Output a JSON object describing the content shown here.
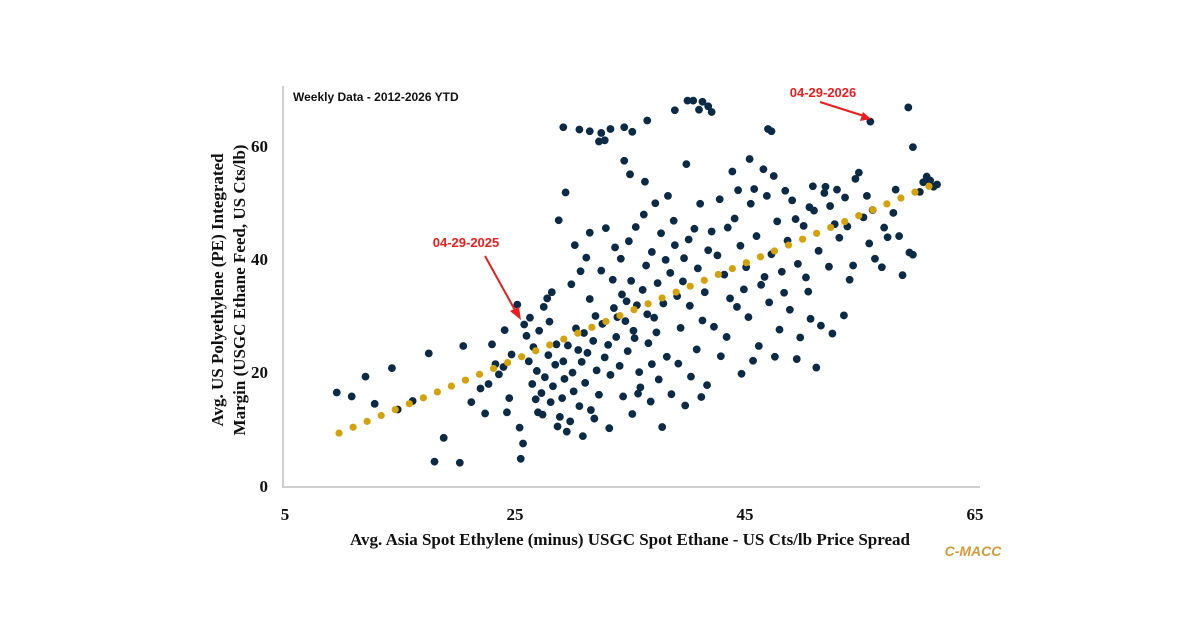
{
  "chart_data": {
    "type": "scatter",
    "subtitle": "Weekly Data - 2012-2026 YTD",
    "xlabel": "Avg. Asia Spot Ethylene (minus) USGC Spot Ethane - US Cts/lb Price Spread",
    "ylabel_lines": [
      "Avg. US Polyethylene (PE) Integrated",
      "Margin (USGC Ethane Feed, US Cts/lb)"
    ],
    "xlim": [
      5,
      65
    ],
    "ylim": [
      0,
      70
    ],
    "x_ticks": [
      "5",
      "25",
      "45",
      "65"
    ],
    "y_ticks": [
      "0",
      "20",
      "40",
      "60"
    ],
    "grid": false,
    "brand": "C-MACC",
    "colors": {
      "points": "#0b2a45",
      "trendline": "#d4a20a",
      "annotation": "#ee1c1c",
      "brand": "#d49a3a",
      "axis": "#cfcfcf"
    },
    "trendline": {
      "slope": 0.849,
      "intercept": 1.1,
      "x_range": [
        9.7,
        61.0
      ],
      "style": "dotted"
    },
    "annotations": [
      {
        "label": "04-29-2025",
        "x": 25.8,
        "y": 28.5
      },
      {
        "label": "04-29-2026",
        "x": 56.8,
        "y": 64.2
      }
    ],
    "points": [
      [
        9.5,
        16.5
      ],
      [
        10.8,
        15.8
      ],
      [
        12,
        19.3
      ],
      [
        12.8,
        14.5
      ],
      [
        14.3,
        20.8
      ],
      [
        14.8,
        13.5
      ],
      [
        16.1,
        15
      ],
      [
        17.5,
        23.4
      ],
      [
        18,
        4.3
      ],
      [
        18.8,
        8.5
      ],
      [
        20.2,
        4.1
      ],
      [
        20.5,
        24.7
      ],
      [
        21.2,
        14.8
      ],
      [
        22,
        17.2
      ],
      [
        22.7,
        18
      ],
      [
        23,
        25
      ],
      [
        23.3,
        21.5
      ],
      [
        24,
        21
      ],
      [
        24.1,
        27.5
      ],
      [
        24.3,
        13
      ],
      [
        24.5,
        15.5
      ],
      [
        25.2,
        32
      ],
      [
        25.4,
        10.3
      ],
      [
        25.5,
        4.8
      ],
      [
        25.7,
        7.5
      ],
      [
        25.8,
        28.5
      ],
      [
        26,
        26.5
      ],
      [
        26.5,
        18
      ],
      [
        27,
        13
      ],
      [
        27.5,
        31.6
      ],
      [
        28.2,
        34.2
      ],
      [
        28.8,
        46.9
      ],
      [
        29.4,
        51.8
      ],
      [
        28.6,
        25
      ],
      [
        28,
        29
      ],
      [
        29.2,
        22
      ],
      [
        30,
        20
      ],
      [
        30.5,
        24
      ],
      [
        31,
        27
      ],
      [
        31.5,
        33
      ],
      [
        32,
        30
      ],
      [
        32.5,
        38
      ],
      [
        30.2,
        42.5
      ],
      [
        31.5,
        44.7
      ],
      [
        26.2,
        22
      ],
      [
        26.6,
        24.5
      ],
      [
        26.9,
        20.3
      ],
      [
        27.3,
        16.4
      ],
      [
        27.6,
        19.2
      ],
      [
        27.9,
        23.1
      ],
      [
        28.1,
        14.8
      ],
      [
        28.3,
        17.6
      ],
      [
        28.5,
        21.4
      ],
      [
        28.9,
        12.2
      ],
      [
        29.1,
        15.5
      ],
      [
        29.3,
        18.9
      ],
      [
        29.6,
        24.8
      ],
      [
        29.8,
        11.4
      ],
      [
        30.1,
        16.7
      ],
      [
        30.3,
        27.8
      ],
      [
        30.6,
        14.1
      ],
      [
        30.8,
        21.9
      ],
      [
        31.1,
        18.2
      ],
      [
        31.3,
        23.5
      ],
      [
        31.6,
        13.4
      ],
      [
        31.8,
        25.6
      ],
      [
        32.1,
        20.4
      ],
      [
        32.3,
        16.1
      ],
      [
        32.6,
        28.6
      ],
      [
        32.8,
        22.7
      ],
      [
        33.1,
        24.9
      ],
      [
        33.3,
        19.6
      ],
      [
        33.6,
        31.4
      ],
      [
        33.8,
        26.3
      ],
      [
        34.1,
        21.2
      ],
      [
        34.3,
        33.8
      ],
      [
        34.6,
        29.1
      ],
      [
        34.8,
        23.8
      ],
      [
        35.1,
        36.2
      ],
      [
        35.3,
        27.4
      ],
      [
        35.6,
        31.9
      ],
      [
        35.8,
        20.1
      ],
      [
        36.1,
        34.6
      ],
      [
        36.4,
        38.9
      ],
      [
        36.6,
        25.2
      ],
      [
        36.9,
        41.3
      ],
      [
        37.1,
        29.7
      ],
      [
        37.4,
        35.8
      ],
      [
        37.7,
        44.6
      ],
      [
        37.9,
        32.2
      ],
      [
        38.2,
        22.8
      ],
      [
        38.5,
        37.6
      ],
      [
        38.8,
        46.8
      ],
      [
        39.1,
        33.5
      ],
      [
        39.4,
        27.9
      ],
      [
        39.7,
        40.2
      ],
      [
        26.8,
        15.3
      ],
      [
        27.4,
        12.6
      ],
      [
        28.7,
        10.5
      ],
      [
        29.5,
        9.6
      ],
      [
        30.9,
        8.8
      ],
      [
        31.9,
        11.9
      ],
      [
        33.2,
        10.2
      ],
      [
        34.4,
        15.8
      ],
      [
        35.2,
        12.7
      ],
      [
        35.9,
        17.4
      ],
      [
        36.8,
        14.9
      ],
      [
        37.5,
        18.8
      ],
      [
        38.6,
        16.2
      ],
      [
        39.2,
        21.6
      ],
      [
        40.3,
        19.3
      ],
      [
        41.2,
        15.7
      ],
      [
        41.7,
        17.8
      ],
      [
        40.8,
        24.1
      ],
      [
        33.5,
        36.4
      ],
      [
        34.2,
        40.1
      ],
      [
        34.9,
        43.2
      ],
      [
        35.5,
        45.7
      ],
      [
        36.2,
        47.9
      ],
      [
        33.9,
        29.8
      ],
      [
        34.7,
        32.6
      ],
      [
        35.4,
        26.1
      ],
      [
        36.5,
        30.3
      ],
      [
        37.3,
        27.1
      ],
      [
        38.1,
        39.9
      ],
      [
        38.9,
        42.5
      ],
      [
        39.6,
        36.1
      ],
      [
        40.2,
        31.8
      ],
      [
        40.9,
        38.4
      ],
      [
        41.5,
        34.2
      ],
      [
        42.1,
        44.9
      ],
      [
        42.6,
        40.7
      ],
      [
        43.2,
        37.3
      ],
      [
        43.7,
        33.1
      ],
      [
        44.1,
        47.2
      ],
      [
        44.6,
        42.4
      ],
      [
        45.1,
        38.6
      ],
      [
        45.5,
        49.8
      ],
      [
        46,
        44.1
      ],
      [
        46.4,
        35.5
      ],
      [
        46.9,
        51.2
      ],
      [
        47.3,
        40.9
      ],
      [
        47.8,
        46.7
      ],
      [
        48.2,
        37.8
      ],
      [
        48.7,
        43.3
      ],
      [
        49.1,
        50.4
      ],
      [
        49.6,
        39.2
      ],
      [
        50.1,
        45.9
      ],
      [
        50.5,
        34.3
      ],
      [
        51,
        48.6
      ],
      [
        51.4,
        41.5
      ],
      [
        51.9,
        51.7
      ],
      [
        52.3,
        38.7
      ],
      [
        52.8,
        46.2
      ],
      [
        53.2,
        43.8
      ],
      [
        53.7,
        50.9
      ],
      [
        54.1,
        36.4
      ],
      [
        41.3,
        29.2
      ],
      [
        42.3,
        28.1
      ],
      [
        43.4,
        26.3
      ],
      [
        44.3,
        31.6
      ],
      [
        45.3,
        29.8
      ],
      [
        46.2,
        24.7
      ],
      [
        47.1,
        32.4
      ],
      [
        48,
        27.6
      ],
      [
        48.9,
        31.1
      ],
      [
        49.8,
        26.2
      ],
      [
        50.7,
        29.5
      ],
      [
        51.6,
        28.3
      ],
      [
        52.6,
        26.9
      ],
      [
        53.6,
        30.1
      ],
      [
        45.7,
        22.1
      ],
      [
        47.6,
        22.8
      ],
      [
        44.9,
        34.7
      ],
      [
        46.7,
        36.9
      ],
      [
        48.4,
        34.1
      ],
      [
        50.3,
        36.8
      ],
      [
        40.1,
        43.5
      ],
      [
        40.6,
        45.4
      ],
      [
        41.1,
        49.8
      ],
      [
        41.8,
        41.6
      ],
      [
        42.8,
        50.6
      ],
      [
        43.5,
        45.6
      ],
      [
        44.4,
        52.2
      ],
      [
        45.8,
        52.4
      ],
      [
        46.6,
        55.9
      ],
      [
        47.5,
        54.7
      ],
      [
        48.5,
        52.1
      ],
      [
        49.4,
        47.1
      ],
      [
        50.9,
        52.9
      ],
      [
        52,
        52.8
      ],
      [
        53,
        52.3
      ],
      [
        54.6,
        54.2
      ],
      [
        54.9,
        55.3
      ],
      [
        52.4,
        49.4
      ],
      [
        50.6,
        49.2
      ],
      [
        55.3,
        47.4
      ],
      [
        55.8,
        42.8
      ],
      [
        56.3,
        40.1
      ],
      [
        56.9,
        38.6
      ],
      [
        57.4,
        43.9
      ],
      [
        57.9,
        48.2
      ],
      [
        58.4,
        44.1
      ],
      [
        58.7,
        37.2
      ],
      [
        59.3,
        41.2
      ],
      [
        59.6,
        40.8
      ],
      [
        58.1,
        52.3
      ],
      [
        60.5,
        53.6
      ],
      [
        60.8,
        54.6
      ],
      [
        61.1,
        53.9
      ],
      [
        61.4,
        52.8
      ],
      [
        61.7,
        53.2
      ],
      [
        60.2,
        51.9
      ],
      [
        56.1,
        48.7
      ],
      [
        57.1,
        45.6
      ],
      [
        55.6,
        51.2
      ],
      [
        54.4,
        38.9
      ],
      [
        53.9,
        45.8
      ],
      [
        29.2,
        63.3
      ],
      [
        30.6,
        62.9
      ],
      [
        31.5,
        62.6
      ],
      [
        32.3,
        60.8
      ],
      [
        32.5,
        62.3
      ],
      [
        32.8,
        61
      ],
      [
        33.3,
        63
      ],
      [
        34.5,
        63.3
      ],
      [
        35.2,
        62.5
      ],
      [
        36.5,
        64.5
      ],
      [
        38.9,
        66.3
      ],
      [
        40,
        68
      ],
      [
        40.5,
        68
      ],
      [
        41.3,
        67.8
      ],
      [
        41.8,
        67
      ],
      [
        41,
        66.4
      ],
      [
        42.1,
        66
      ],
      [
        34.5,
        57.4
      ],
      [
        35,
        55
      ],
      [
        36.3,
        53.7
      ],
      [
        47,
        63
      ],
      [
        47.3,
        62.6
      ],
      [
        55.9,
        64.3
      ],
      [
        59.2,
        66.8
      ],
      [
        59.6,
        59.8
      ],
      [
        22.4,
        12.8
      ],
      [
        23.6,
        19.7
      ],
      [
        24.7,
        23.2
      ],
      [
        26.3,
        29.7
      ],
      [
        27.1,
        27.4
      ],
      [
        27.8,
        33.1
      ],
      [
        29.9,
        35.6
      ],
      [
        30.7,
        37.9
      ],
      [
        31.2,
        40.3
      ],
      [
        33.7,
        42.1
      ],
      [
        32.9,
        45.5
      ],
      [
        37.2,
        49.9
      ],
      [
        38.3,
        51.2
      ],
      [
        39.9,
        56.8
      ],
      [
        43.9,
        55.5
      ],
      [
        45.4,
        57.7
      ],
      [
        35.7,
        16.3
      ],
      [
        36.9,
        21.5
      ],
      [
        39.8,
        14.2
      ],
      [
        42.9,
        22.9
      ],
      [
        44.7,
        19.8
      ],
      [
        49.5,
        22.4
      ],
      [
        51.2,
        20.9
      ],
      [
        37.8,
        10.4
      ]
    ]
  }
}
